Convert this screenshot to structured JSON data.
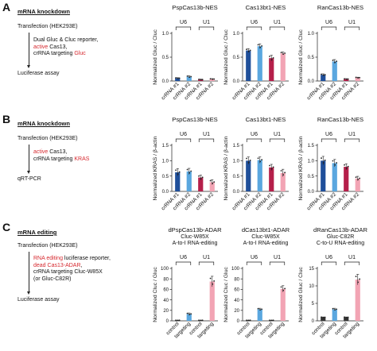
{
  "colors": {
    "u6_cr1": "#1f4f9a",
    "u6_cr2": "#5aa7df",
    "u1_cr1": "#b51f4a",
    "u1_cr2": "#f2a4b4",
    "control": "#333333",
    "red_text": "#d6282e"
  },
  "panels": [
    {
      "letter": "A",
      "section_title": "mRNA knockdown",
      "steps": [
        {
          "text": "Transfection (HEK293E)"
        },
        {
          "lines": [
            [
              {
                "t": "Dual Gluc & Cluc reporter,",
                "red": false
              }
            ],
            [
              {
                "t": "active",
                "red": true
              },
              {
                "t": " Cas13,",
                "red": false
              }
            ],
            [
              {
                "t": "crRNA targeting ",
                "red": false
              },
              {
                "t": "Gluc",
                "red": true
              }
            ]
          ]
        },
        {
          "text": "Luciferase assay"
        }
      ]
    },
    {
      "letter": "B",
      "section_title": "mRNA knockdown",
      "steps": [
        {
          "text": "Transfection (HEK293E)"
        },
        {
          "lines": [
            [
              {
                "t": "active",
                "red": true
              },
              {
                "t": " Cas13,",
                "red": false
              }
            ],
            [
              {
                "t": "crRNA targeting ",
                "red": false
              },
              {
                "t": "KRAS",
                "red": true
              }
            ]
          ]
        },
        {
          "text": "qRT-PCR"
        }
      ]
    },
    {
      "letter": "C",
      "section_title": "mRNA editing",
      "steps": [
        {
          "text": "Transfection (HEK293E)"
        },
        {
          "lines": [
            [
              {
                "t": "RNA editing",
                "red": true
              },
              {
                "t": " luciferase reporter,",
                "red": false
              }
            ],
            [
              {
                "t": "dead Cas13-ADAR",
                "red": true
              },
              {
                "t": ",",
                "red": false
              }
            ],
            [
              {
                "t": "crRNA targeting Cluc-W85X",
                "red": false
              }
            ],
            [
              {
                "t": "(or Gluc-C82R)",
                "red": false
              }
            ]
          ]
        },
        {
          "text": "Luciferase assay"
        }
      ]
    }
  ],
  "chart_data": [
    {
      "type": "bar",
      "panel": "A",
      "title_lines": [
        "PspCas13b-NES"
      ],
      "ylabel": "Normalized Gluc / Cluc",
      "ylim": [
        0,
        1.0
      ],
      "yticks": [
        "0.0",
        "0.5",
        "1.0"
      ],
      "yticks_values": [
        0,
        0.5,
        1.0
      ],
      "categories": [
        "crRNA #1",
        "crRNA #2",
        "crRNA #1",
        "crRNA #2"
      ],
      "groups": [
        {
          "label": "U6",
          "span": [
            0,
            1
          ]
        },
        {
          "label": "U1",
          "span": [
            2,
            3
          ]
        }
      ],
      "values": [
        0.06,
        0.09,
        0.03,
        0.04
      ],
      "errors": [
        0.01,
        0.02,
        0.01,
        0.01
      ],
      "bar_colors": [
        "u6_cr1",
        "u6_cr2",
        "u1_cr1",
        "u1_cr2"
      ]
    },
    {
      "type": "bar",
      "panel": "A",
      "title_lines": [
        "Cas13bt1-NES"
      ],
      "ylabel": "Normalized Gluc / Cluc",
      "ylim": [
        0,
        1.0
      ],
      "yticks": [
        "0.0",
        "0.5",
        "1.0"
      ],
      "yticks_values": [
        0,
        0.5,
        1.0
      ],
      "categories": [
        "crRNA #1",
        "crRNA #2",
        "crRNA #1",
        "crRNA #2"
      ],
      "groups": [
        {
          "label": "U6",
          "span": [
            0,
            1
          ]
        },
        {
          "label": "U1",
          "span": [
            2,
            3
          ]
        }
      ],
      "values": [
        0.64,
        0.73,
        0.48,
        0.58
      ],
      "errors": [
        0.04,
        0.05,
        0.06,
        0.03
      ],
      "bar_colors": [
        "u6_cr1",
        "u6_cr2",
        "u1_cr1",
        "u1_cr2"
      ]
    },
    {
      "type": "bar",
      "panel": "A",
      "title_lines": [
        "RanCas13b-NES"
      ],
      "ylabel": "Normalized Gluc / Cluc",
      "ylim": [
        0,
        1.0
      ],
      "yticks": [
        "0.0",
        "0.5",
        "1.0"
      ],
      "yticks_values": [
        0,
        0.5,
        1.0
      ],
      "categories": [
        "crRNA #1",
        "crRNA #2",
        "crRNA #1",
        "crRNA #2"
      ],
      "groups": [
        {
          "label": "U6",
          "span": [
            0,
            1
          ]
        },
        {
          "label": "U1",
          "span": [
            2,
            3
          ]
        }
      ],
      "values": [
        0.13,
        0.41,
        0.04,
        0.07
      ],
      "errors": [
        0.02,
        0.04,
        0.01,
        0.01
      ],
      "bar_colors": [
        "u6_cr1",
        "u6_cr2",
        "u1_cr1",
        "u1_cr2"
      ]
    },
    {
      "type": "bar",
      "panel": "B",
      "title_lines": [
        "PspCas13b-NES"
      ],
      "ylabel": "Normalized KRAS / β-actin",
      "ylim": [
        0,
        1.5
      ],
      "yticks": [
        "0.0",
        "0.5",
        "1.0",
        "1.5"
      ],
      "yticks_values": [
        0,
        0.5,
        1.0,
        1.5
      ],
      "categories": [
        "crRNA #1",
        "crRNA #2",
        "crRNA #1",
        "crRNA #2"
      ],
      "groups": [
        {
          "label": "U6",
          "span": [
            0,
            1
          ]
        },
        {
          "label": "U1",
          "span": [
            2,
            3
          ]
        }
      ],
      "values": [
        0.62,
        0.65,
        0.45,
        0.3
      ],
      "errors": [
        0.12,
        0.1,
        0.08,
        0.08
      ],
      "bar_colors": [
        "u6_cr1",
        "u6_cr2",
        "u1_cr1",
        "u1_cr2"
      ]
    },
    {
      "type": "bar",
      "panel": "B",
      "title_lines": [
        "Cas13bt1-NES"
      ],
      "ylabel": "Normalized KRAS / β-actin",
      "ylim": [
        0,
        1.5
      ],
      "yticks": [
        "0.0",
        "0.5",
        "1.0",
        "1.5"
      ],
      "yticks_values": [
        0,
        0.5,
        1.0,
        1.5
      ],
      "categories": [
        "crRNA #1",
        "crRNA #2",
        "crRNA #1",
        "crRNA #2"
      ],
      "groups": [
        {
          "label": "U6",
          "span": [
            0,
            1
          ]
        },
        {
          "label": "U1",
          "span": [
            2,
            3
          ]
        }
      ],
      "values": [
        1.0,
        1.02,
        0.78,
        0.6
      ],
      "errors": [
        0.12,
        0.1,
        0.1,
        0.12
      ],
      "bar_colors": [
        "u6_cr1",
        "u6_cr2",
        "u1_cr1",
        "u1_cr2"
      ]
    },
    {
      "type": "bar",
      "panel": "B",
      "title_lines": [
        "RanCas13b-NES"
      ],
      "ylabel": "Normalized KRAS / β-actin",
      "ylim": [
        0,
        1.5
      ],
      "yticks": [
        "0.0",
        "0.5",
        "1.0",
        "1.5"
      ],
      "yticks_values": [
        0,
        0.5,
        1.0,
        1.5
      ],
      "categories": [
        "crRNA #1",
        "crRNA #2",
        "crRNA #1",
        "crRNA #2"
      ],
      "groups": [
        {
          "label": "U6",
          "span": [
            0,
            1
          ]
        },
        {
          "label": "U1",
          "span": [
            2,
            3
          ]
        }
      ],
      "values": [
        1.0,
        0.92,
        0.8,
        0.42
      ],
      "errors": [
        0.14,
        0.12,
        0.1,
        0.07
      ],
      "bar_colors": [
        "u6_cr1",
        "u6_cr2",
        "u1_cr1",
        "u1_cr2"
      ]
    },
    {
      "type": "bar",
      "panel": "C",
      "title_lines": [
        "dPspCas13b-ADAR",
        "Cluc-W85X",
        "A-to-I RNA-editing"
      ],
      "ylabel": "Normalized Cluc / Gluc",
      "ylim": [
        0,
        100
      ],
      "yticks": [
        "0",
        "20",
        "40",
        "60",
        "80",
        "100"
      ],
      "yticks_values": [
        0,
        20,
        40,
        60,
        80,
        100
      ],
      "categories": [
        "control",
        "targeting",
        "control",
        "targeting"
      ],
      "groups": [
        {
          "label": "U6",
          "span": [
            0,
            1
          ]
        },
        {
          "label": "U1",
          "span": [
            2,
            3
          ]
        }
      ],
      "values": [
        1.0,
        13.0,
        1.0,
        75.0
      ],
      "errors": [
        0.3,
        2.0,
        0.3,
        10.0
      ],
      "bar_colors": [
        "control",
        "u6_cr2",
        "control",
        "u1_cr2"
      ]
    },
    {
      "type": "bar",
      "panel": "C",
      "title_lines": [
        "dCas13bt1-ADAR",
        "Cluc-W85X",
        "A-to-I RNA-editing"
      ],
      "ylabel": "Normalized Cluc / Gluc",
      "ylim": [
        0,
        100
      ],
      "yticks": [
        "0",
        "20",
        "40",
        "60",
        "80",
        "100"
      ],
      "yticks_values": [
        0,
        20,
        40,
        60,
        80,
        100
      ],
      "categories": [
        "control",
        "targeting",
        "control",
        "targeting"
      ],
      "groups": [
        {
          "label": "U6",
          "span": [
            0,
            1
          ]
        },
        {
          "label": "U1",
          "span": [
            2,
            3
          ]
        }
      ],
      "values": [
        1.0,
        22.0,
        1.0,
        61.0
      ],
      "errors": [
        0.3,
        2.0,
        0.3,
        6.0
      ],
      "bar_colors": [
        "control",
        "u6_cr2",
        "control",
        "u1_cr2"
      ]
    },
    {
      "type": "bar",
      "panel": "C",
      "title_lines": [
        "dRanCas13b-ADAR",
        "Gluc-C82R",
        "C-to-U RNA-editing"
      ],
      "ylabel": "Normalized Gluc / Cluc",
      "ylim": [
        0,
        15
      ],
      "yticks": [
        "0",
        "5",
        "10",
        "15"
      ],
      "yticks_values": [
        0,
        5,
        10,
        15
      ],
      "categories": [
        "control",
        "targeting",
        "control",
        "targeting"
      ],
      "groups": [
        {
          "label": "U6",
          "span": [
            0,
            1
          ]
        },
        {
          "label": "U1",
          "span": [
            2,
            3
          ]
        }
      ],
      "values": [
        1.0,
        3.3,
        1.0,
        11.8
      ],
      "errors": [
        0.1,
        0.3,
        0.1,
        1.5
      ],
      "bar_colors": [
        "control",
        "u6_cr2",
        "control",
        "u1_cr2"
      ]
    }
  ]
}
